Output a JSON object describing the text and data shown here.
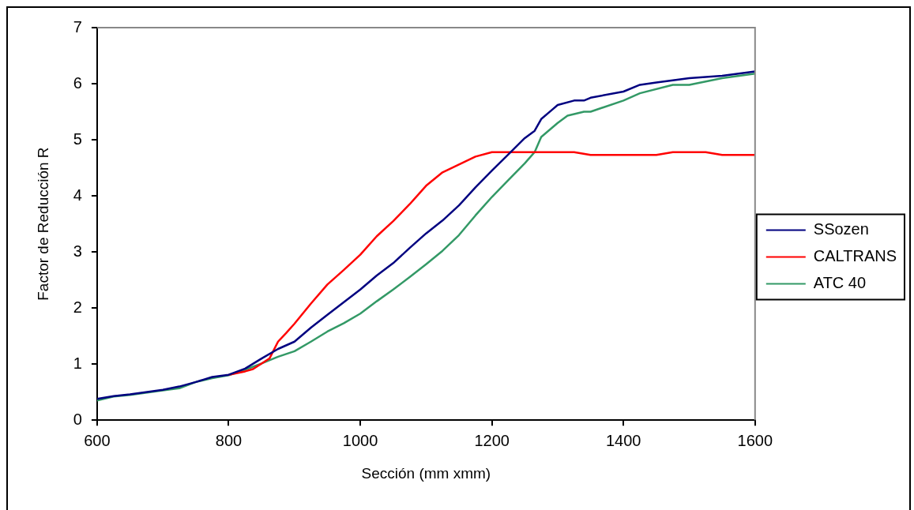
{
  "chart_data": {
    "type": "line",
    "xlabel": "Sección (mm xmm)",
    "ylabel": "Factor de Reducción R",
    "xlim": [
      600,
      1600
    ],
    "ylim": [
      0,
      7
    ],
    "xticks": [
      600,
      800,
      1000,
      1200,
      1400,
      1600
    ],
    "yticks": [
      0,
      1,
      2,
      3,
      4,
      5,
      6,
      7
    ],
    "legend": "right",
    "marker": "none",
    "line_style": "solid",
    "series": [
      {
        "name": "SSozen",
        "color": "#000080",
        "x": [
          600,
          625,
          650,
          700,
          725,
          750,
          775,
          800,
          825,
          850,
          875,
          900,
          925,
          950,
          1000,
          1025,
          1050,
          1075,
          1100,
          1125,
          1150,
          1175,
          1200,
          1225,
          1250,
          1265,
          1275,
          1290,
          1300,
          1325,
          1340,
          1350,
          1400,
          1425,
          1450,
          1500,
          1550,
          1600
        ],
        "values": [
          0.38,
          0.43,
          0.46,
          0.54,
          0.6,
          0.68,
          0.77,
          0.81,
          0.92,
          1.1,
          1.27,
          1.4,
          1.65,
          1.88,
          2.33,
          2.58,
          2.8,
          3.07,
          3.33,
          3.56,
          3.83,
          4.15,
          4.45,
          4.74,
          5.03,
          5.16,
          5.37,
          5.52,
          5.62,
          5.7,
          5.7,
          5.75,
          5.86,
          5.98,
          6.02,
          6.1,
          6.14,
          6.22
        ]
      },
      {
        "name": "CALTRANS",
        "color": "#ff0000",
        "x": [
          800,
          825,
          837,
          862,
          875,
          887,
          900,
          925,
          950,
          975,
          1000,
          1025,
          1050,
          1075,
          1100,
          1125,
          1150,
          1175,
          1200,
          1325,
          1350,
          1450,
          1475,
          1525,
          1550,
          1600
        ],
        "values": [
          0.81,
          0.87,
          0.91,
          1.1,
          1.4,
          1.55,
          1.72,
          2.08,
          2.42,
          2.68,
          2.95,
          3.28,
          3.55,
          3.85,
          4.18,
          4.42,
          4.56,
          4.7,
          4.78,
          4.78,
          4.73,
          4.73,
          4.78,
          4.78,
          4.73,
          4.73
        ]
      },
      {
        "name": "ATC 40",
        "color": "#339966",
        "x": [
          600,
          625,
          650,
          700,
          725,
          750,
          775,
          800,
          825,
          850,
          875,
          900,
          925,
          950,
          975,
          1000,
          1025,
          1050,
          1075,
          1100,
          1125,
          1150,
          1175,
          1200,
          1225,
          1250,
          1265,
          1275,
          1300,
          1315,
          1340,
          1350,
          1400,
          1425,
          1475,
          1500,
          1550,
          1600
        ],
        "values": [
          0.35,
          0.42,
          0.45,
          0.53,
          0.57,
          0.68,
          0.75,
          0.8,
          0.9,
          1.01,
          1.13,
          1.23,
          1.4,
          1.58,
          1.73,
          1.9,
          2.12,
          2.33,
          2.55,
          2.78,
          3.02,
          3.3,
          3.65,
          3.98,
          4.28,
          4.58,
          4.78,
          5.05,
          5.3,
          5.43,
          5.5,
          5.5,
          5.7,
          5.83,
          5.98,
          5.98,
          6.1,
          6.18
        ]
      }
    ]
  }
}
